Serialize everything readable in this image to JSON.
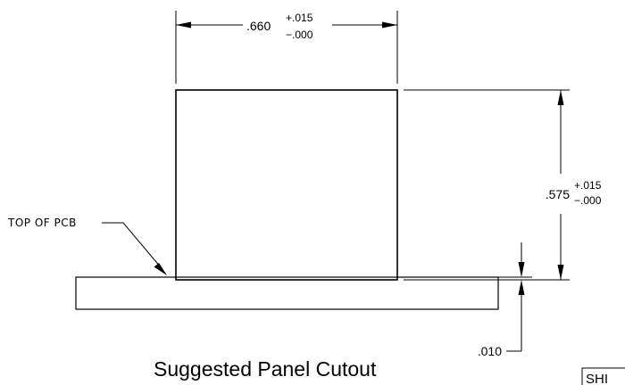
{
  "dimensions": {
    "width": {
      "nominal": ".660",
      "tol_plus": "+.015",
      "tol_minus": "−.000"
    },
    "height": {
      "nominal": ".575",
      "tol_plus": "+.015",
      "tol_minus": "−.000"
    },
    "offset": {
      "value": ".010"
    }
  },
  "notes": {
    "pcb_label": "TOP OF PCB"
  },
  "caption": "Suggested Panel Cutout",
  "corner_label": "SHI"
}
